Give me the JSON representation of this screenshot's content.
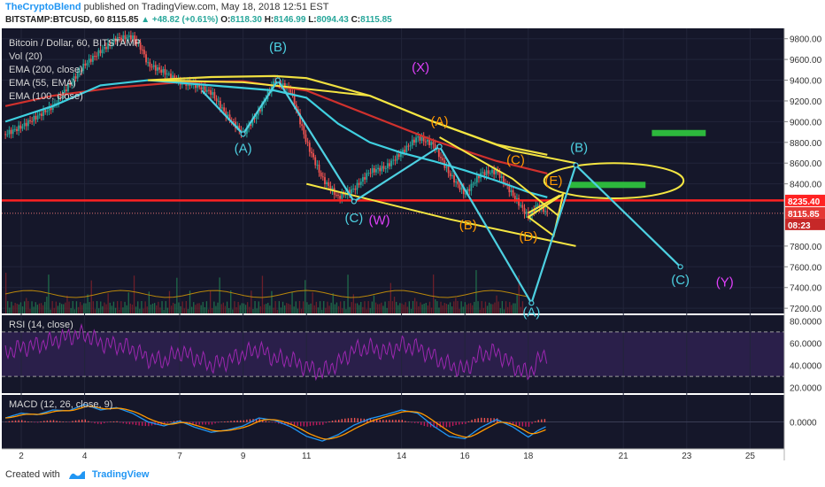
{
  "header": {
    "author": "TheCryptoBlend",
    "published": "published on TradingView.com, May 18, 2018 12:51 EST",
    "symbol": "BITSTAMP:BTCUSD, 60",
    "last": "8115.85",
    "change": "+48.82 (+0.61%)",
    "o_label": "O:",
    "o": "8118.30",
    "h_label": "H:",
    "h": "8146.99",
    "l_label": "L:",
    "l": "8094.43",
    "c_label": "C:",
    "c": "8115.85"
  },
  "footer": {
    "created_with": "Created with",
    "brand": "TradingView"
  },
  "colors": {
    "bg": "#15172a",
    "ema200": "#d0312d",
    "ema55": "#3fd0e0",
    "ema100": "#f0e040",
    "rsi": "#9c27b0",
    "macd": "#2196f3",
    "signal": "#ff9800",
    "cyan_wave": "#4dd0e1",
    "magenta": "#e040fb",
    "orange": "#ff9800",
    "resistance": "#ff2222",
    "box": "#2db83d"
  },
  "chart_data": {
    "type": "line",
    "symbol": "BITSTAMP:BTCUSD",
    "interval": "60",
    "x_ticks": [
      "2",
      "4",
      "7",
      "9",
      "11",
      "14",
      "16",
      "18",
      "21",
      "23",
      "25"
    ],
    "x_tick_days": [
      2,
      4,
      7,
      9,
      11,
      14,
      16,
      18,
      21,
      23,
      25
    ],
    "y_ticks": [
      9800,
      9600,
      9400,
      9200,
      9000,
      8800,
      8600,
      8400,
      7800,
      7600,
      7400,
      7200
    ],
    "ylim": [
      7150,
      9900
    ],
    "price_marks": [
      {
        "label": "8235.40",
        "price": 8235.4,
        "color": "#ff2222"
      },
      {
        "label": "8115.85",
        "price": 8115.85,
        "color": "#e53935"
      },
      {
        "label": "08:23",
        "price": 8005,
        "color": "#c62828"
      }
    ],
    "price_path": [
      [
        1.5,
        8880
      ],
      [
        2,
        8950
      ],
      [
        2.5,
        9050
      ],
      [
        3,
        9150
      ],
      [
        3.5,
        9350
      ],
      [
        4,
        9550
      ],
      [
        4.5,
        9680
      ],
      [
        5,
        9800
      ],
      [
        5.5,
        9820
      ],
      [
        5.8,
        9700
      ],
      [
        6,
        9550
      ],
      [
        6.5,
        9480
      ],
      [
        7,
        9380
      ],
      [
        7.5,
        9350
      ],
      [
        8,
        9280
      ],
      [
        8.5,
        9050
      ],
      [
        9,
        8880
      ],
      [
        9.5,
        9100
      ],
      [
        10,
        9400
      ],
      [
        10.5,
        9300
      ],
      [
        11,
        8800
      ],
      [
        11.5,
        8450
      ],
      [
        12,
        8270
      ],
      [
        12.5,
        8350
      ],
      [
        13,
        8520
      ],
      [
        13.5,
        8560
      ],
      [
        14,
        8700
      ],
      [
        14.5,
        8850
      ],
      [
        15,
        8780
      ],
      [
        15.5,
        8500
      ],
      [
        16,
        8300
      ],
      [
        16.5,
        8500
      ],
      [
        17,
        8520
      ],
      [
        17.5,
        8300
      ],
      [
        18,
        8080
      ],
      [
        18.3,
        8200
      ],
      [
        18.6,
        8116
      ]
    ],
    "rsi_path": [
      [
        1.5,
        52
      ],
      [
        2,
        56
      ],
      [
        2.5,
        58
      ],
      [
        3,
        62
      ],
      [
        3.5,
        66
      ],
      [
        4,
        68
      ],
      [
        4.5,
        60
      ],
      [
        5,
        58
      ],
      [
        5.5,
        55
      ],
      [
        6,
        46
      ],
      [
        6.5,
        44
      ],
      [
        7,
        52
      ],
      [
        7.5,
        47
      ],
      [
        8,
        40
      ],
      [
        8.5,
        44
      ],
      [
        9,
        50
      ],
      [
        9.5,
        55
      ],
      [
        10,
        46
      ],
      [
        10.5,
        45
      ],
      [
        11,
        38
      ],
      [
        11.5,
        34
      ],
      [
        12,
        42
      ],
      [
        12.5,
        54
      ],
      [
        13,
        56
      ],
      [
        13.5,
        52
      ],
      [
        14,
        58
      ],
      [
        14.5,
        56
      ],
      [
        15,
        48
      ],
      [
        15.5,
        40
      ],
      [
        16,
        36
      ],
      [
        16.5,
        50
      ],
      [
        17,
        52
      ],
      [
        17.5,
        40
      ],
      [
        18,
        32
      ],
      [
        18.3,
        44
      ],
      [
        18.6,
        50
      ]
    ],
    "macd_path": [
      [
        1.5,
        10
      ],
      [
        2,
        22
      ],
      [
        2.5,
        18
      ],
      [
        3,
        30
      ],
      [
        3.5,
        28
      ],
      [
        4,
        44
      ],
      [
        4.5,
        30
      ],
      [
        5,
        36
      ],
      [
        5.5,
        22
      ],
      [
        6,
        0
      ],
      [
        6.5,
        -10
      ],
      [
        7,
        2
      ],
      [
        7.5,
        -14
      ],
      [
        8,
        -26
      ],
      [
        8.5,
        -20
      ],
      [
        9,
        -10
      ],
      [
        9.5,
        10
      ],
      [
        10,
        4
      ],
      [
        10.5,
        -12
      ],
      [
        11,
        -36
      ],
      [
        11.5,
        -48
      ],
      [
        12,
        -32
      ],
      [
        12.5,
        -8
      ],
      [
        13,
        8
      ],
      [
        13.5,
        18
      ],
      [
        14,
        30
      ],
      [
        14.5,
        22
      ],
      [
        15,
        -10
      ],
      [
        15.5,
        -36
      ],
      [
        16,
        -42
      ],
      [
        16.5,
        -14
      ],
      [
        17,
        6
      ],
      [
        17.5,
        -12
      ],
      [
        18,
        -38
      ],
      [
        18.3,
        -22
      ],
      [
        18.6,
        -10
      ]
    ],
    "series": [
      {
        "name": "Vol (20)",
        "values": []
      },
      {
        "name": "EMA (200, close)",
        "color": "#d0312d",
        "points": [
          [
            1.5,
            9150
          ],
          [
            3,
            9250
          ],
          [
            5,
            9330
          ],
          [
            7,
            9380
          ],
          [
            9,
            9390
          ],
          [
            11,
            9300
          ],
          [
            13,
            9060
          ],
          [
            15,
            8820
          ],
          [
            17,
            8620
          ],
          [
            18.6,
            8500
          ]
        ]
      },
      {
        "name": "EMA (55, EMA)",
        "color": "#3fd0e0",
        "points": [
          [
            1.5,
            9000
          ],
          [
            3,
            9150
          ],
          [
            4.5,
            9350
          ],
          [
            6,
            9400
          ],
          [
            8,
            9350
          ],
          [
            10,
            9300
          ],
          [
            11,
            9230
          ],
          [
            12,
            8980
          ],
          [
            13,
            8800
          ],
          [
            14,
            8700
          ],
          [
            15,
            8620
          ],
          [
            16,
            8530
          ],
          [
            17,
            8430
          ],
          [
            18,
            8320
          ],
          [
            18.6,
            8270
          ]
        ]
      },
      {
        "name": "EMA (100, close)",
        "color": "#f0e040",
        "points": [
          [
            6,
            9400
          ],
          [
            8,
            9430
          ],
          [
            10,
            9440
          ],
          [
            11,
            9420
          ],
          [
            13,
            9250
          ],
          [
            15,
            9000
          ],
          [
            17,
            8780
          ],
          [
            18.6,
            8680
          ]
        ]
      },
      {
        "name": "RSI (14, close)",
        "values": []
      },
      {
        "name": "MACD (12, 26, close, 9)",
        "values": []
      }
    ],
    "rsi_ticks": [
      "80.0000",
      "60.0000",
      "40.0000",
      "20.0000"
    ],
    "rsi_tick_values": [
      80,
      60,
      40,
      20
    ],
    "rsi_levels": [
      70,
      30
    ],
    "macd_tick": "0.0000",
    "annotations": [
      {
        "label": "(A)",
        "day": 9,
        "price": 8700,
        "color": "#4dd0e1"
      },
      {
        "label": "(B)",
        "day": 10.1,
        "price": 9680,
        "color": "#4dd0e1"
      },
      {
        "label": "(X)",
        "day": 14.6,
        "price": 9480,
        "color": "#e040fb"
      },
      {
        "label": "(A)",
        "day": 15.2,
        "price": 8960,
        "color": "#ff9800"
      },
      {
        "label": "(C)",
        "day": 12.5,
        "price": 8030,
        "color": "#4dd0e1"
      },
      {
        "label": "(W)",
        "day": 13.3,
        "price": 8010,
        "color": "#e040fb"
      },
      {
        "label": "(B)",
        "day": 16.1,
        "price": 7960,
        "color": "#ff9800"
      },
      {
        "label": "(C)",
        "day": 17.6,
        "price": 8590,
        "color": "#ff9800"
      },
      {
        "label": "(D)",
        "day": 18.0,
        "price": 7850,
        "color": "#ff9800"
      },
      {
        "label": "(E)",
        "day": 18.8,
        "price": 8390,
        "color": "#ff9800"
      },
      {
        "label": "(B)",
        "day": 19.6,
        "price": 8710,
        "color": "#4dd0e1"
      },
      {
        "label": "(C)",
        "day": 22.8,
        "price": 7430,
        "color": "#4dd0e1"
      },
      {
        "label": "(Y)",
        "day": 24.2,
        "price": 7410,
        "color": "#e040fb"
      },
      {
        "label": "(A)",
        "day": 18.1,
        "price": 7120,
        "color": "#4dd0e1"
      }
    ],
    "cyan_wave": [
      [
        7.7,
        9300
      ],
      [
        9,
        8880
      ],
      [
        10.1,
        9400
      ],
      [
        12.5,
        8230
      ],
      [
        15.2,
        8760
      ],
      [
        18.1,
        7250
      ],
      [
        19.5,
        8580
      ],
      [
        22.8,
        7600
      ]
    ],
    "resistance_price": 8240,
    "trendlines": [
      {
        "points": [
          [
            6,
            9400
          ],
          [
            9,
            9380
          ],
          [
            13,
            9250
          ],
          [
            15,
            9000
          ],
          [
            17.5,
            8720
          ],
          [
            19.5,
            8600
          ]
        ]
      },
      {
        "points": [
          [
            11,
            8400
          ],
          [
            15.5,
            8060
          ],
          [
            19.5,
            7800
          ]
        ]
      },
      {
        "points": [
          [
            15.2,
            8850
          ],
          [
            17.5,
            8450
          ],
          [
            19,
            8080
          ]
        ]
      },
      {
        "points": [
          [
            18,
            8120
          ],
          [
            19,
            8290
          ]
        ]
      }
    ],
    "green_boxes": [
      {
        "x0": 21.9,
        "x1": 23.6,
        "y0": 8860,
        "y1": 8920
      },
      {
        "x0": 19.3,
        "x1": 21.7,
        "y0": 8360,
        "y1": 8420
      }
    ],
    "ellipse": {
      "cx": 20.7,
      "cy": 8430,
      "rx_days": 2.2,
      "ry_price": 170
    }
  }
}
